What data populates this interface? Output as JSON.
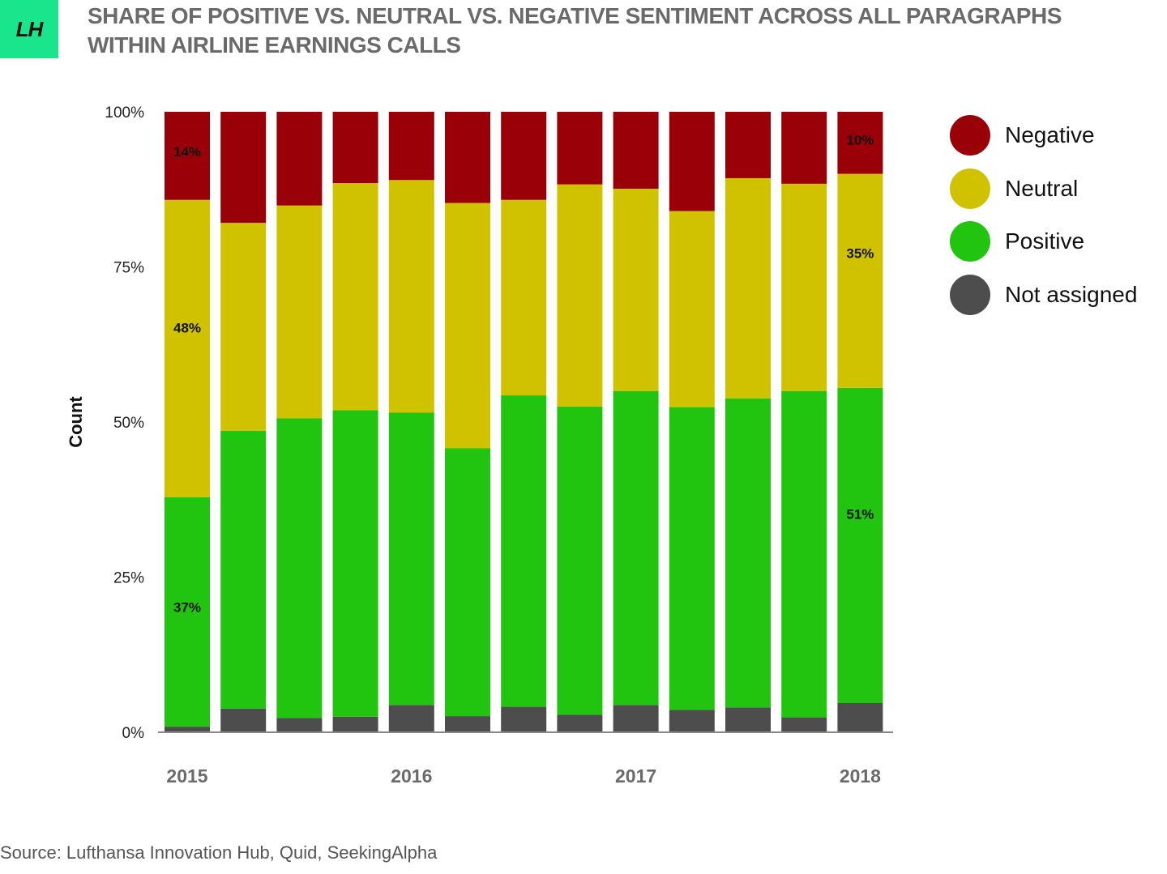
{
  "logo": {
    "text": "LH"
  },
  "title": "SHARE OF POSITIVE VS. NEUTRAL VS. NEGATIVE SENTIMENT ACROSS ALL PARAGRAPHS WITHIN AIRLINE EARNINGS CALLS",
  "source": "Source: Lufthansa Innovation Hub, Quid, SeekingAlpha",
  "colors": {
    "Negative": "#9a0007",
    "Neutral": "#d1c200",
    "Positive": "#21c40f",
    "Not assigned": "#4d4d4d"
  },
  "legend": [
    "Negative",
    "Neutral",
    "Positive",
    "Not assigned"
  ],
  "chart_data": {
    "type": "bar",
    "stacked": true,
    "ylabel": "Count",
    "ylim": [
      0,
      100
    ],
    "yticks": [
      "0%",
      "25%",
      "50%",
      "75%",
      "100%"
    ],
    "xtick_labels": [
      {
        "label": "2015",
        "bar_index": 0
      },
      {
        "label": "2016",
        "bar_index": 4
      },
      {
        "label": "2017",
        "bar_index": 8
      },
      {
        "label": "2018",
        "bar_index": 12
      }
    ],
    "categories": [
      "",
      "",
      "",
      "",
      "",
      "",
      "",
      "",
      "",
      "",
      "",
      "",
      ""
    ],
    "series": [
      {
        "name": "Not assigned",
        "values": [
          0.9,
          3.8,
          2.3,
          2.5,
          4.4,
          2.6,
          4.1,
          2.8,
          4.4,
          3.6,
          4.0,
          2.4,
          4.7
        ]
      },
      {
        "name": "Positive",
        "values": [
          37.0,
          44.8,
          48.3,
          49.4,
          47.1,
          43.2,
          50.2,
          49.7,
          50.6,
          48.8,
          49.8,
          52.6,
          50.8
        ]
      },
      {
        "name": "Neutral",
        "values": [
          47.9,
          33.5,
          34.3,
          36.6,
          37.5,
          39.5,
          31.5,
          35.8,
          32.6,
          31.6,
          35.5,
          33.4,
          34.5
        ]
      },
      {
        "name": "Negative",
        "values": [
          14.2,
          17.9,
          15.1,
          11.5,
          11.0,
          14.7,
          14.2,
          11.7,
          12.4,
          16.0,
          10.7,
          11.6,
          10.0
        ]
      }
    ],
    "data_labels": [
      {
        "bar_index": 0,
        "series": "Negative",
        "text": "14%"
      },
      {
        "bar_index": 0,
        "series": "Neutral",
        "text": "48%"
      },
      {
        "bar_index": 0,
        "series": "Positive",
        "text": "37%"
      },
      {
        "bar_index": 12,
        "series": "Negative",
        "text": "10%"
      },
      {
        "bar_index": 12,
        "series": "Neutral",
        "text": "35%"
      },
      {
        "bar_index": 12,
        "series": "Positive",
        "text": "51%"
      }
    ]
  }
}
